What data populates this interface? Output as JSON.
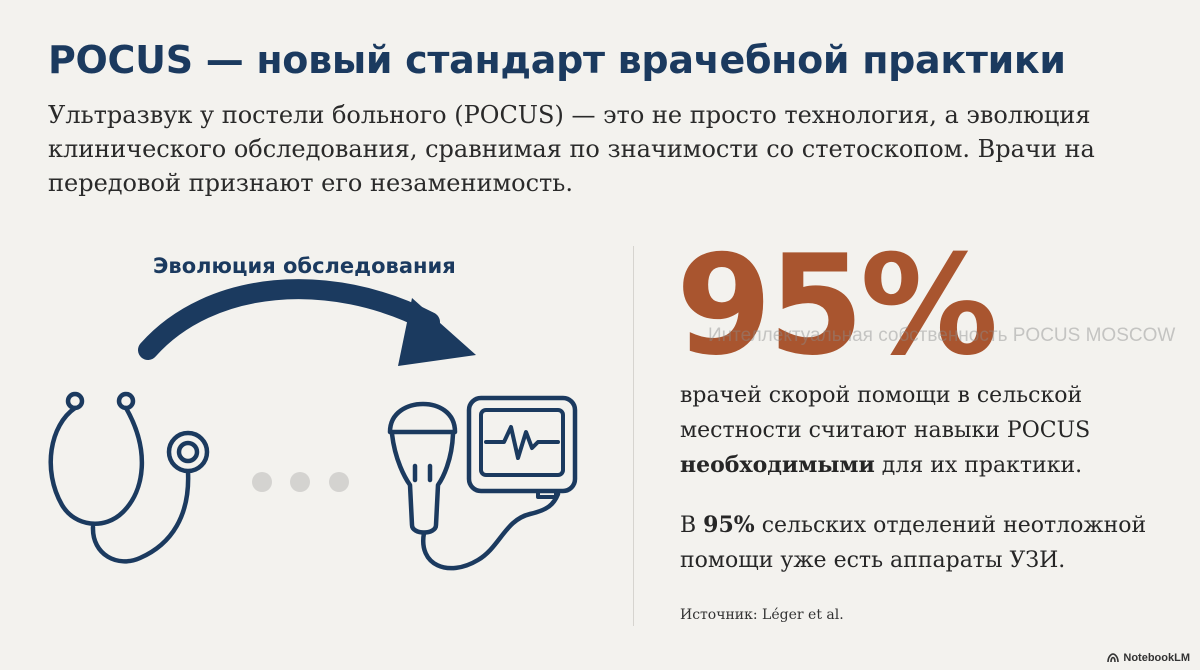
{
  "header": {
    "title": "POCUS — новый стандарт врачебной практики",
    "intro": "Ультразвук у постели больного (POCUS) — это не просто технология, а эволюция клинического обследования, сравнимая по значимости со стетоскопом. Врачи на передовой признают его незаменимость."
  },
  "evolution": {
    "label": "Эволюция обследования",
    "icons": [
      "stethoscope-icon",
      "ellipsis-dots",
      "ultrasound-probe-icon",
      "monitor-icon"
    ]
  },
  "stats": {
    "big_number": "95%",
    "watermark": "Интеллектуальная собственность POCUS MOSCOW",
    "description_part1": "врачей скорой помощи в сельской местности считают навыки POCUS ",
    "description_bold": "необходимыми",
    "description_part2": " для их практики.",
    "note_part1": "В ",
    "note_bold": "95%",
    "note_part2": " сельских отделений неотложной помощи уже есть аппараты УЗИ.",
    "source": "Источник: Léger et al."
  },
  "brand": {
    "name": "NotebookLM",
    "icon": "notebooklm-logo-icon"
  },
  "colors": {
    "navy": "#1b3a5f",
    "accent": "#a9552f",
    "dots": "#d4d3d0",
    "background": "#f3f2ee"
  }
}
